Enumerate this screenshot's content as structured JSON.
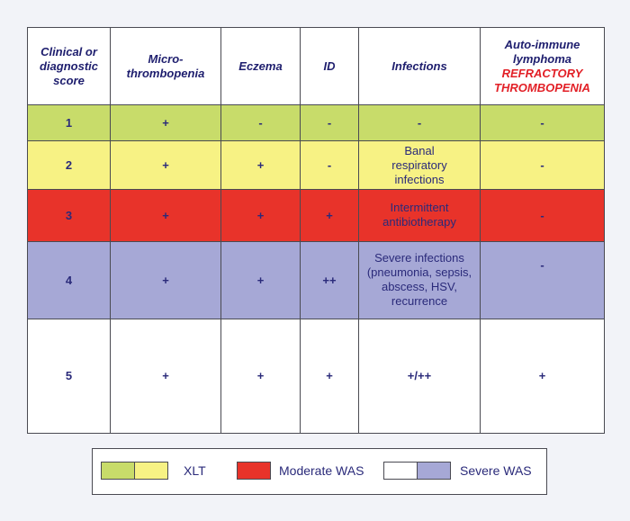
{
  "headers": {
    "score": [
      "Clinical or",
      "diagnostic",
      "score"
    ],
    "micro": [
      "Micro-",
      "thrombopenia"
    ],
    "eczema": "Eczema",
    "id": "ID",
    "infections": "Infections",
    "autoimmune": [
      "Auto-immune",
      "lymphoma"
    ],
    "refractory": [
      "REFRACTORY",
      "THROMBOPENIA"
    ]
  },
  "rows": [
    {
      "score": "1",
      "micro": "+",
      "eczema": "-",
      "id": "-",
      "infections": [
        "-"
      ],
      "auto": "-",
      "color": "#c8dc6a"
    },
    {
      "score": "2",
      "micro": "+",
      "eczema": "+",
      "id": "-",
      "infections": [
        "Banal",
        "respiratory",
        "infections"
      ],
      "auto": "-",
      "color": "#f7f284"
    },
    {
      "score": "3",
      "micro": "+",
      "eczema": "+",
      "id": "+",
      "infections": [
        "Intermittent",
        "antibiotherapy"
      ],
      "auto": "-",
      "color": "#e8332a"
    },
    {
      "score": "4",
      "micro": "+",
      "eczema": "+",
      "id": "++",
      "infections": [
        "Severe infections",
        "(pneumonia, sepsis,",
        "abscess, HSV,",
        "recurrence"
      ],
      "auto": "-",
      "color": "#a6a8d6"
    },
    {
      "score": "5",
      "micro": "+",
      "eczema": "+",
      "id": "+",
      "infections": [
        "+/++"
      ],
      "auto": "+",
      "color": "#ffffff"
    }
  ],
  "legend": {
    "xlt": "XLT",
    "moderate": "Moderate WAS",
    "severe": "Severe WAS",
    "colors": {
      "xlt_a": "#c8dc6a",
      "xlt_b": "#f7f284",
      "moderate": "#e8332a",
      "severe_a": "#ffffff",
      "severe_b": "#a6a8d6"
    }
  }
}
